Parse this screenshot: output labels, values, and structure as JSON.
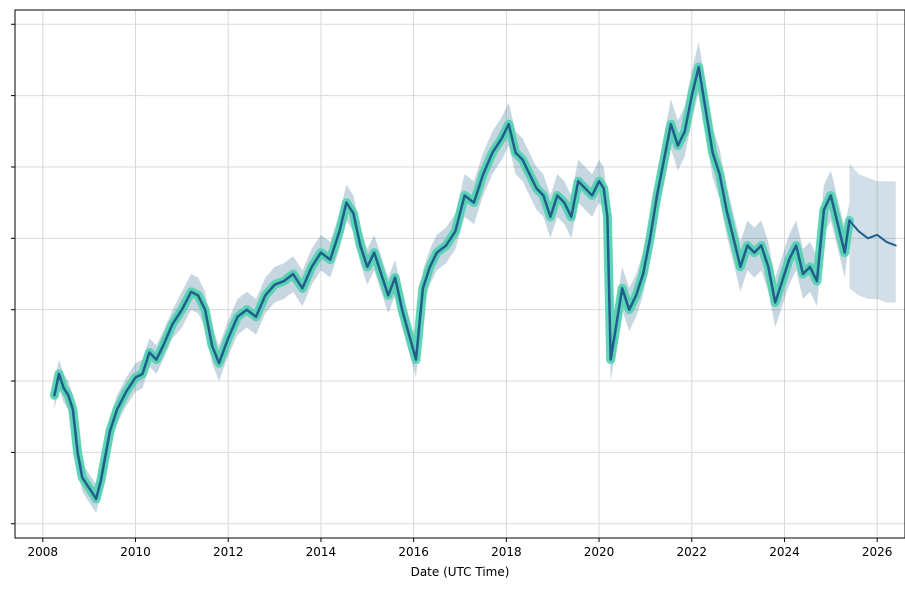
{
  "chart_data": {
    "type": "line",
    "title": "",
    "xlabel": "Date (UTC Time)",
    "ylabel": "",
    "x_ticks": [
      "2008",
      "2010",
      "2012",
      "2014",
      "2016",
      "2018",
      "2020",
      "2022",
      "2024",
      "2026"
    ],
    "x_tick_years": [
      2008,
      2010,
      2012,
      2014,
      2016,
      2018,
      2020,
      2022,
      2024,
      2026
    ],
    "xlim": [
      2007.4,
      2026.6
    ],
    "ylim": [
      -0.2,
      7.2
    ],
    "y_ticks": [
      0,
      1,
      2,
      3,
      4,
      5,
      6,
      7
    ],
    "y_tick_labels_visible": false,
    "grid": true,
    "series": [
      {
        "role": "history",
        "color": "#1f5f8b",
        "highlight_color": "#4fd1b0",
        "x": [
          2008.25,
          2008.35,
          2008.45,
          2008.55,
          2008.65,
          2008.75,
          2008.85,
          2008.95,
          2009.05,
          2009.15,
          2009.25,
          2009.35,
          2009.45,
          2009.6,
          2009.8,
          2010.0,
          2010.15,
          2010.3,
          2010.45,
          2010.6,
          2010.8,
          2011.0,
          2011.2,
          2011.35,
          2011.5,
          2011.65,
          2011.8,
          2012.0,
          2012.2,
          2012.4,
          2012.6,
          2012.8,
          2013.0,
          2013.2,
          2013.4,
          2013.6,
          2013.8,
          2014.0,
          2014.2,
          2014.4,
          2014.55,
          2014.7,
          2014.85,
          2015.0,
          2015.15,
          2015.3,
          2015.45,
          2015.6,
          2015.75,
          2015.9,
          2016.05,
          2016.2,
          2016.35,
          2016.5,
          2016.7,
          2016.9,
          2017.1,
          2017.3,
          2017.5,
          2017.7,
          2017.9,
          2018.05,
          2018.2,
          2018.35,
          2018.5,
          2018.65,
          2018.8,
          2018.95,
          2019.1,
          2019.25,
          2019.4,
          2019.55,
          2019.7,
          2019.85,
          2020.0,
          2020.1,
          2020.18,
          2020.25,
          2020.35,
          2020.5,
          2020.65,
          2020.8,
          2020.95,
          2021.1,
          2021.25,
          2021.4,
          2021.55,
          2021.7,
          2021.85,
          2022.0,
          2022.15,
          2022.3,
          2022.45,
          2022.6,
          2022.75,
          2022.9,
          2023.05,
          2023.2,
          2023.35,
          2023.5,
          2023.65,
          2023.8,
          2023.95,
          2024.1,
          2024.25,
          2024.4,
          2024.55,
          2024.7,
          2024.85,
          2025.0,
          2025.15,
          2025.3,
          2025.4
        ],
        "values": [
          1.8,
          2.1,
          1.9,
          1.8,
          1.6,
          1.0,
          0.65,
          0.55,
          0.45,
          0.35,
          0.6,
          0.95,
          1.3,
          1.6,
          1.85,
          2.05,
          2.1,
          2.4,
          2.3,
          2.5,
          2.8,
          3.0,
          3.25,
          3.2,
          3.0,
          2.5,
          2.25,
          2.6,
          2.9,
          3.0,
          2.9,
          3.2,
          3.35,
          3.4,
          3.5,
          3.3,
          3.6,
          3.8,
          3.7,
          4.1,
          4.5,
          4.35,
          3.9,
          3.6,
          3.8,
          3.5,
          3.2,
          3.45,
          3.0,
          2.65,
          2.3,
          3.3,
          3.6,
          3.8,
          3.9,
          4.1,
          4.6,
          4.5,
          4.9,
          5.2,
          5.4,
          5.6,
          5.2,
          5.1,
          4.9,
          4.7,
          4.6,
          4.3,
          4.6,
          4.5,
          4.3,
          4.8,
          4.7,
          4.6,
          4.8,
          4.7,
          4.3,
          2.3,
          2.7,
          3.3,
          3.0,
          3.2,
          3.5,
          4.0,
          4.6,
          5.1,
          5.6,
          5.3,
          5.5,
          6.0,
          6.4,
          5.8,
          5.2,
          4.9,
          4.4,
          4.0,
          3.6,
          3.9,
          3.8,
          3.9,
          3.6,
          3.1,
          3.4,
          3.7,
          3.9,
          3.5,
          3.6,
          3.4,
          4.4,
          4.6,
          4.2,
          3.8,
          4.25
        ],
        "upper": [
          2.0,
          2.3,
          2.1,
          2.0,
          1.8,
          1.2,
          0.85,
          0.75,
          0.65,
          0.55,
          0.8,
          1.15,
          1.5,
          1.8,
          2.05,
          2.25,
          2.3,
          2.6,
          2.5,
          2.7,
          3.0,
          3.25,
          3.5,
          3.45,
          3.25,
          2.75,
          2.5,
          2.85,
          3.15,
          3.25,
          3.15,
          3.45,
          3.6,
          3.65,
          3.75,
          3.55,
          3.85,
          4.05,
          3.95,
          4.35,
          4.75,
          4.6,
          4.15,
          3.85,
          4.05,
          3.75,
          3.45,
          3.7,
          3.25,
          2.9,
          2.55,
          3.55,
          3.85,
          4.05,
          4.15,
          4.35,
          4.9,
          4.8,
          5.2,
          5.5,
          5.7,
          5.9,
          5.5,
          5.4,
          5.2,
          5.0,
          4.9,
          4.6,
          4.9,
          4.8,
          4.6,
          5.1,
          5.0,
          4.9,
          5.1,
          5.0,
          4.6,
          2.6,
          3.0,
          3.6,
          3.3,
          3.5,
          3.8,
          4.3,
          4.9,
          5.45,
          5.95,
          5.65,
          5.85,
          6.35,
          6.75,
          6.15,
          5.55,
          5.25,
          4.75,
          4.35,
          3.95,
          4.25,
          4.15,
          4.25,
          3.95,
          3.45,
          3.75,
          4.05,
          4.25,
          3.85,
          3.95,
          3.75,
          4.75,
          4.95,
          4.55,
          4.15,
          4.5
        ],
        "lower": [
          1.6,
          1.9,
          1.7,
          1.6,
          1.4,
          0.8,
          0.45,
          0.35,
          0.25,
          0.15,
          0.4,
          0.75,
          1.1,
          1.4,
          1.65,
          1.85,
          1.9,
          2.2,
          2.1,
          2.3,
          2.6,
          2.75,
          3.0,
          2.95,
          2.75,
          2.25,
          2.0,
          2.35,
          2.65,
          2.75,
          2.65,
          2.95,
          3.1,
          3.15,
          3.25,
          3.05,
          3.35,
          3.55,
          3.45,
          3.85,
          4.25,
          4.1,
          3.65,
          3.35,
          3.55,
          3.25,
          2.95,
          3.2,
          2.75,
          2.4,
          2.05,
          3.05,
          3.35,
          3.55,
          3.65,
          3.85,
          4.3,
          4.2,
          4.6,
          4.9,
          5.1,
          5.3,
          4.9,
          4.8,
          4.6,
          4.4,
          4.3,
          4.0,
          4.3,
          4.2,
          4.0,
          4.5,
          4.4,
          4.3,
          4.5,
          4.4,
          4.0,
          2.0,
          2.4,
          3.0,
          2.7,
          2.9,
          3.2,
          3.7,
          4.3,
          4.75,
          5.25,
          4.95,
          5.15,
          5.65,
          6.05,
          5.45,
          4.85,
          4.55,
          4.05,
          3.65,
          3.25,
          3.55,
          3.45,
          3.55,
          3.25,
          2.75,
          3.05,
          3.35,
          3.55,
          3.15,
          3.25,
          3.05,
          4.05,
          4.25,
          3.85,
          3.45,
          4.0
        ]
      },
      {
        "role": "forecast",
        "color": "#1f5f8b",
        "band_color": "#1f5f8b",
        "x": [
          2025.4,
          2025.6,
          2025.8,
          2026.0,
          2026.2,
          2026.4
        ],
        "values": [
          4.25,
          4.1,
          4.0,
          4.05,
          3.95,
          3.9
        ],
        "upper": [
          5.05,
          4.9,
          4.85,
          4.8,
          4.8,
          4.8
        ],
        "lower": [
          3.3,
          3.2,
          3.15,
          3.15,
          3.1,
          3.1
        ]
      }
    ]
  }
}
